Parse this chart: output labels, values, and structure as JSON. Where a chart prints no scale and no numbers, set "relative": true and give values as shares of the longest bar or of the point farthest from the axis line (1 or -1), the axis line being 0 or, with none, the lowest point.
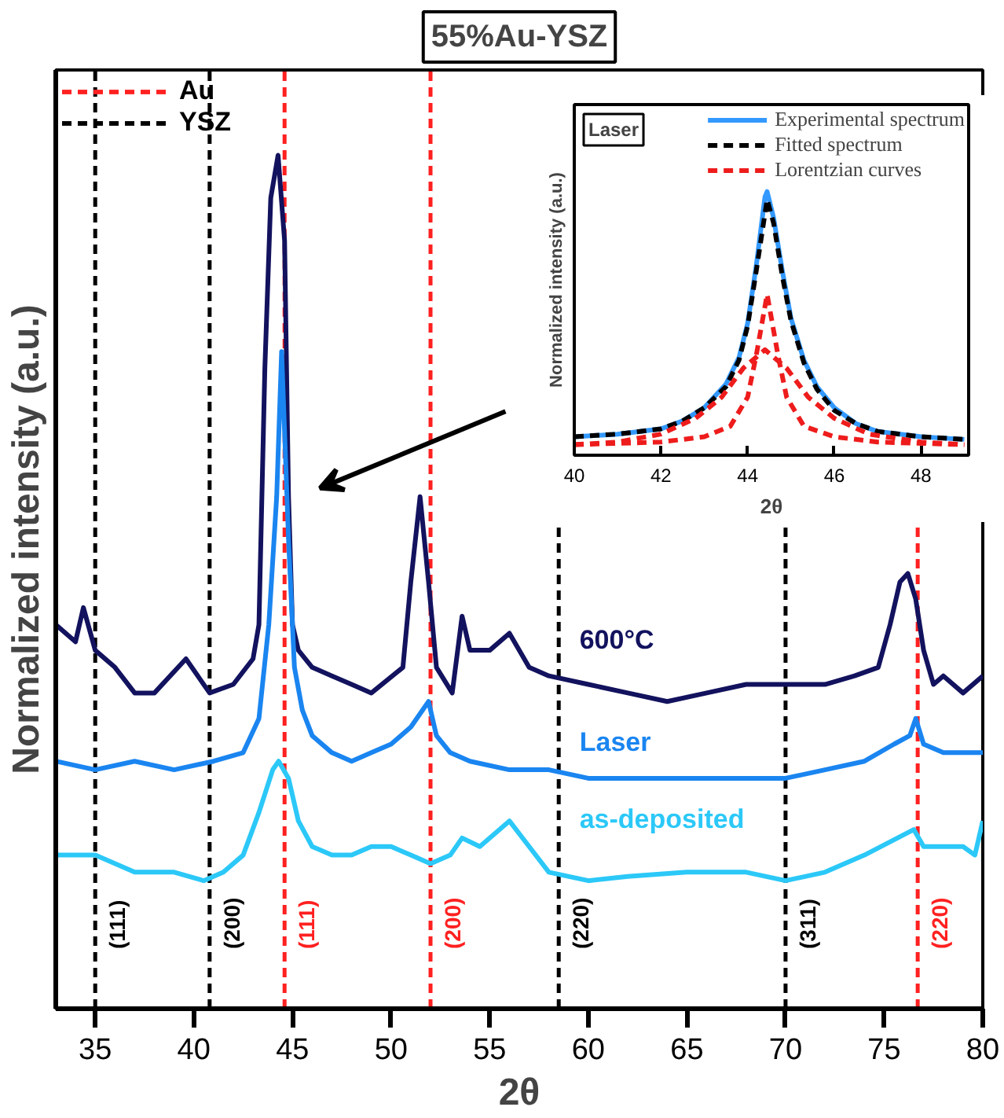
{
  "chart_data": [
    {
      "type": "line",
      "title": "55%Au-YSZ",
      "xlabel": "2θ",
      "ylabel": "Normalized intensity (a.u.)",
      "relative": true,
      "xlim": [
        33,
        80
      ],
      "xticks": [
        35,
        40,
        45,
        50,
        55,
        60,
        65,
        70,
        75,
        80
      ],
      "grid": false,
      "annotations": [
        "Au",
        "YSZ",
        {
          "text": "(111)",
          "x": 44.6,
          "y": 0.07
        },
        {
          "text": "(200)",
          "x": 52.0,
          "y": 0.07
        },
        {
          "text": "(220)",
          "x": 76.7,
          "y": 0.07
        },
        {
          "text": "(111)",
          "x": 35.0,
          "y": 0.07
        },
        {
          "text": "(200)",
          "x": 40.8,
          "y": 0.07
        },
        {
          "text": "(220)",
          "x": 58.5,
          "y": 0.07
        },
        {
          "text": "(311)",
          "x": 70.0,
          "y": 0.07
        }
      ],
      "ref_lines": [
        {
          "axis": "x",
          "value": 44.6,
          "color": "#ff2020",
          "line_style": "dashed"
        },
        {
          "axis": "x",
          "value": 52.0,
          "color": "#ff2020",
          "line_style": "dashed"
        },
        {
          "axis": "x",
          "value": 76.7,
          "color": "#ff2020",
          "line_style": "dashed"
        },
        {
          "axis": "x",
          "value": 35.0,
          "color": "#000000",
          "line_style": "dashed"
        },
        {
          "axis": "x",
          "value": 40.8,
          "color": "#000000",
          "line_style": "dashed"
        },
        {
          "axis": "x",
          "value": 58.5,
          "color": "#000000",
          "line_style": "dashed"
        },
        {
          "axis": "x",
          "value": 70.0,
          "color": "#000000",
          "line_style": "dashed"
        }
      ],
      "series": [
        {
          "name": "600°C",
          "color": "#12125e",
          "x": [
            33,
            34,
            34.4,
            35,
            36,
            37,
            38,
            39.6,
            40.8,
            42,
            43,
            43.3,
            43.6,
            43.9,
            44.27,
            44.6,
            44.8,
            45.0,
            45.3,
            46,
            47,
            48,
            49,
            50.6,
            51,
            51.47,
            51.9,
            52.3,
            53.1,
            53.6,
            54,
            55,
            56.0,
            57,
            58,
            60,
            62,
            64,
            66,
            68,
            70,
            72,
            73.5,
            74.7,
            75.3,
            75.8,
            76.2,
            76.6,
            77.0,
            77.5,
            78,
            79,
            80
          ],
          "values": [
            0.45,
            0.43,
            0.47,
            0.42,
            0.4,
            0.37,
            0.37,
            0.41,
            0.37,
            0.38,
            0.41,
            0.45,
            0.75,
            0.95,
            1.0,
            0.9,
            0.6,
            0.45,
            0.42,
            0.4,
            0.39,
            0.38,
            0.37,
            0.4,
            0.5,
            0.6,
            0.5,
            0.4,
            0.37,
            0.46,
            0.42,
            0.42,
            0.44,
            0.4,
            0.39,
            0.38,
            0.37,
            0.36,
            0.37,
            0.38,
            0.38,
            0.38,
            0.39,
            0.4,
            0.45,
            0.5,
            0.51,
            0.48,
            0.42,
            0.38,
            0.39,
            0.37,
            0.39
          ]
        },
        {
          "name": "Laser",
          "color": "#1a85f0",
          "x": [
            33,
            35,
            37,
            39,
            41,
            42.5,
            43.3,
            43.8,
            44.2,
            44.45,
            44.8,
            45.1,
            45.5,
            46,
            47,
            48,
            49,
            50,
            51,
            51.9,
            52.3,
            53,
            54,
            56,
            58,
            60,
            65,
            70,
            72,
            74,
            75.5,
            76.3,
            76.6,
            77,
            78,
            80
          ],
          "values": [
            0.29,
            0.28,
            0.29,
            0.28,
            0.29,
            0.3,
            0.34,
            0.45,
            0.6,
            0.77,
            0.55,
            0.4,
            0.35,
            0.32,
            0.3,
            0.29,
            0.3,
            0.31,
            0.33,
            0.36,
            0.32,
            0.3,
            0.29,
            0.28,
            0.28,
            0.27,
            0.27,
            0.27,
            0.28,
            0.29,
            0.31,
            0.32,
            0.34,
            0.31,
            0.3,
            0.3
          ]
        },
        {
          "name": "as-deposited",
          "color": "#2bc8f8",
          "x": [
            33,
            35,
            37,
            39,
            40.5,
            41.5,
            42.5,
            43.3,
            44.0,
            44.3,
            44.8,
            45.3,
            46,
            47,
            48,
            49,
            50,
            51,
            52,
            53,
            53.6,
            54.5,
            56.0,
            57,
            58,
            60,
            62,
            65,
            68,
            70,
            72,
            74,
            76.5,
            77,
            79,
            79.6,
            80
          ],
          "values": [
            0.18,
            0.18,
            0.16,
            0.16,
            0.15,
            0.16,
            0.18,
            0.23,
            0.28,
            0.29,
            0.27,
            0.22,
            0.19,
            0.18,
            0.18,
            0.19,
            0.19,
            0.18,
            0.17,
            0.18,
            0.2,
            0.19,
            0.22,
            0.19,
            0.16,
            0.15,
            0.155,
            0.16,
            0.16,
            0.15,
            0.16,
            0.18,
            0.21,
            0.19,
            0.19,
            0.18,
            0.22
          ]
        }
      ]
    },
    {
      "type": "line",
      "title": "Laser",
      "xlabel": "2θ",
      "ylabel": "Normalized intensity (a.u.)",
      "relative": true,
      "xlim": [
        40,
        49.1
      ],
      "xticks": [
        40,
        42,
        44,
        46,
        48
      ],
      "grid": false,
      "legend": "top right",
      "series": [
        {
          "name": "Experimental spectrum",
          "color": "#3399ff",
          "line_style": "solid",
          "x": [
            40.0,
            41.0,
            42.0,
            42.5,
            43.0,
            43.5,
            43.8,
            44.0,
            44.2,
            44.4,
            44.45,
            44.6,
            44.8,
            45.0,
            45.3,
            45.6,
            46.0,
            46.5,
            47.0,
            48.0,
            49.0
          ],
          "values": [
            0.07,
            0.08,
            0.1,
            0.13,
            0.18,
            0.27,
            0.37,
            0.5,
            0.72,
            0.98,
            1.0,
            0.9,
            0.7,
            0.52,
            0.36,
            0.26,
            0.18,
            0.12,
            0.09,
            0.07,
            0.06
          ]
        },
        {
          "name": "Fitted spectrum",
          "color": "#000000",
          "line_style": "dashed",
          "x": [
            40.0,
            41.0,
            42.0,
            42.5,
            43.0,
            43.5,
            43.8,
            44.0,
            44.2,
            44.45,
            44.6,
            44.8,
            45.0,
            45.3,
            45.6,
            46.0,
            46.5,
            47.0,
            48.0,
            49.0
          ],
          "values": [
            0.07,
            0.08,
            0.1,
            0.13,
            0.18,
            0.26,
            0.36,
            0.49,
            0.7,
            0.97,
            0.88,
            0.68,
            0.51,
            0.35,
            0.25,
            0.17,
            0.12,
            0.09,
            0.07,
            0.06
          ]
        },
        {
          "name": "Lorentzian curves",
          "color": "#ee1c1c",
          "line_style": "dashed",
          "x": [
            40,
            42,
            43,
            43.6,
            44.0,
            44.2,
            44.45,
            44.7,
            44.9,
            45.3,
            46,
            47,
            49
          ],
          "values": [
            0.04,
            0.05,
            0.07,
            0.11,
            0.22,
            0.38,
            0.61,
            0.38,
            0.22,
            0.11,
            0.07,
            0.05,
            0.04
          ]
        },
        {
          "color": "#ee1c1c",
          "line_style": "dashed",
          "x": [
            40,
            41,
            42,
            42.8,
            43.4,
            43.9,
            44.4,
            44.9,
            45.4,
            46,
            46.8,
            48,
            49
          ],
          "values": [
            0.04,
            0.05,
            0.08,
            0.14,
            0.22,
            0.33,
            0.4,
            0.33,
            0.22,
            0.14,
            0.08,
            0.05,
            0.04
          ]
        }
      ]
    }
  ]
}
